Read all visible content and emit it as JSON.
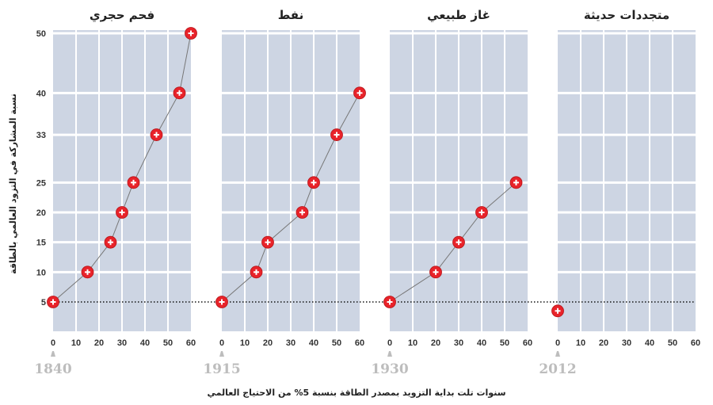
{
  "chart_data": {
    "type": "line",
    "ylabel": "نسبة المشاركة في التزود العالمي بالطاقة",
    "xlabel": "سنوات تلت بداية التزويد بمصدر الطاقة بنسبة 5% من الاحتياج العالمي",
    "y_ticks": [
      5,
      10,
      15,
      20,
      25,
      33,
      40,
      50
    ],
    "x_ticks": [
      0,
      10,
      20,
      30,
      40,
      50,
      60
    ],
    "xlim": [
      0,
      60
    ],
    "reference_line_y": 5,
    "colors": {
      "grid_bg": "#cdd5e3",
      "marker": "#e8232a",
      "line": "#777777"
    },
    "panels": [
      {
        "title": "فحم حجري",
        "start_year": "1840",
        "points": [
          {
            "x": 0,
            "y": 5
          },
          {
            "x": 15,
            "y": 10
          },
          {
            "x": 25,
            "y": 15
          },
          {
            "x": 30,
            "y": 20
          },
          {
            "x": 35,
            "y": 25
          },
          {
            "x": 45,
            "y": 33
          },
          {
            "x": 55,
            "y": 40
          },
          {
            "x": 60,
            "y": 50
          }
        ]
      },
      {
        "title": "نفط",
        "start_year": "1915",
        "points": [
          {
            "x": 0,
            "y": 5
          },
          {
            "x": 15,
            "y": 10
          },
          {
            "x": 20,
            "y": 15
          },
          {
            "x": 35,
            "y": 20
          },
          {
            "x": 40,
            "y": 25
          },
          {
            "x": 50,
            "y": 33
          },
          {
            "x": 60,
            "y": 40
          }
        ]
      },
      {
        "title": "غاز طبيعي",
        "start_year": "1930",
        "points": [
          {
            "x": 0,
            "y": 5
          },
          {
            "x": 20,
            "y": 10
          },
          {
            "x": 30,
            "y": 15
          },
          {
            "x": 40,
            "y": 20
          },
          {
            "x": 55,
            "y": 25
          }
        ]
      },
      {
        "title": "متجددات حديثة",
        "start_year": "2012",
        "points": [
          {
            "x": 0,
            "y": 3.5
          }
        ]
      }
    ]
  }
}
